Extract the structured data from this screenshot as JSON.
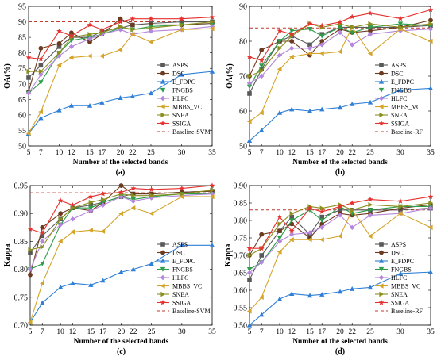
{
  "chart_data": [
    {
      "type": "line",
      "id": "a",
      "caption": "(a)",
      "xlabel": "Number of the selected bands",
      "ylabel": "OA(%)",
      "x": [
        5,
        7,
        10,
        12,
        15,
        17,
        20,
        22,
        25,
        30,
        35
      ],
      "xticks": [
        5,
        7,
        10,
        12,
        15,
        17,
        20,
        22,
        25,
        30,
        35
      ],
      "ylim": [
        50,
        95
      ],
      "yticks": [
        50,
        55,
        60,
        65,
        70,
        75,
        80,
        85,
        90,
        95
      ],
      "baseline": {
        "name": "Baseline-SVM",
        "value": 90
      },
      "legend_position": "center-right",
      "series": [
        {
          "name": "ASPS",
          "values": [
            72,
            76,
            82,
            85,
            85,
            87,
            88,
            89,
            89.5,
            90,
            90
          ]
        },
        {
          "name": "DSC",
          "values": [
            67.5,
            81.5,
            83,
            86.5,
            83.5,
            86,
            91,
            89,
            89,
            89,
            89.5
          ]
        },
        {
          "name": "E_FDPC",
          "values": [
            54,
            59,
            61.5,
            63,
            63,
            64,
            65.5,
            66,
            67,
            73,
            74
          ]
        },
        {
          "name": "FNGBS",
          "values": [
            67,
            70.5,
            80,
            84,
            85,
            86,
            88,
            87.5,
            88.5,
            89,
            89
          ]
        },
        {
          "name": "HLFC",
          "values": [
            67,
            73,
            79,
            82,
            84.5,
            86,
            87.5,
            86,
            87,
            87.5,
            88.5
          ]
        },
        {
          "name": "MBBS_VC",
          "values": [
            54,
            61,
            76,
            78.5,
            79,
            79,
            81,
            86,
            83.5,
            87.5,
            87.8
          ]
        },
        {
          "name": "SNEA",
          "values": [
            74,
            74,
            80,
            85,
            86,
            86.5,
            88.5,
            87.5,
            88,
            89,
            90
          ]
        },
        {
          "name": "SSIGA",
          "values": [
            78.5,
            78,
            87,
            85.5,
            89,
            87.5,
            90,
            91,
            91,
            91,
            91.5
          ]
        }
      ]
    },
    {
      "type": "line",
      "id": "b",
      "caption": "(b)",
      "xlabel": "Number of the selected bands",
      "ylabel": "OA(%)",
      "x": [
        5,
        7,
        10,
        12,
        15,
        17,
        20,
        22,
        25,
        30,
        35
      ],
      "xticks": [
        5,
        7,
        10,
        12,
        15,
        17,
        20,
        22,
        25,
        30,
        35
      ],
      "ylim": [
        50,
        90
      ],
      "yticks": [
        50,
        60,
        70,
        80,
        90
      ],
      "baseline": {
        "name": "Baseline-RF",
        "value": 83.8
      },
      "legend_position": "center-right",
      "series": [
        {
          "name": "ASPS",
          "values": [
            65,
            72,
            80,
            81.5,
            79,
            82,
            84,
            84,
            84,
            84,
            84.5
          ]
        },
        {
          "name": "DSC",
          "values": [
            70,
            77.5,
            80,
            80,
            76,
            80,
            83.5,
            82.5,
            83,
            84,
            86
          ]
        },
        {
          "name": "E_FDPC",
          "values": [
            51.5,
            54.5,
            59.5,
            60.5,
            60,
            60.5,
            61,
            62,
            62.5,
            66,
            66.5
          ]
        },
        {
          "name": "FNGBS",
          "values": [
            67,
            73,
            80,
            83,
            83.5,
            81.5,
            84,
            82.5,
            84,
            85,
            84.5
          ]
        },
        {
          "name": "HLFC",
          "values": [
            68,
            70,
            76,
            78,
            78,
            79,
            82.5,
            79,
            82,
            83,
            83.5
          ]
        },
        {
          "name": "MBBS_VC",
          "values": [
            57,
            59.5,
            72,
            75.5,
            76.5,
            76.5,
            77,
            84,
            76.5,
            83.5,
            80
          ]
        },
        {
          "name": "SNEA",
          "values": [
            70,
            71.5,
            78,
            81.5,
            85,
            84,
            85,
            84,
            85,
            84,
            85
          ]
        },
        {
          "name": "SSIGA",
          "values": [
            75.5,
            74.5,
            83,
            82,
            85,
            84.5,
            85.5,
            87,
            88,
            86.5,
            89
          ]
        }
      ]
    },
    {
      "type": "line",
      "id": "c",
      "caption": "(c)",
      "xlabel": "Number of the selected bands",
      "ylabel": "Kappa",
      "x": [
        5,
        7,
        10,
        12,
        15,
        17,
        20,
        22,
        25,
        30,
        35
      ],
      "xticks": [
        5,
        7,
        10,
        12,
        15,
        17,
        20,
        22,
        25,
        30,
        35
      ],
      "ylim": [
        0.7,
        0.95
      ],
      "yticks": [
        0.7,
        0.75,
        0.8,
        0.85,
        0.9,
        0.95
      ],
      "baseline": {
        "name": "Baseline-SVM",
        "value": 0.937
      },
      "legend_position": "center-right",
      "series": [
        {
          "name": "ASPS",
          "values": [
            0.83,
            0.86,
            0.89,
            0.91,
            0.915,
            0.92,
            0.93,
            0.935,
            0.935,
            0.938,
            0.94
          ]
        },
        {
          "name": "DSC",
          "values": [
            0.79,
            0.875,
            0.9,
            0.91,
            0.905,
            0.92,
            0.95,
            0.935,
            0.935,
            0.938,
            0.94
          ]
        },
        {
          "name": "E_FDPC",
          "values": [
            0.705,
            0.74,
            0.768,
            0.775,
            0.772,
            0.78,
            0.795,
            0.8,
            0.81,
            0.843,
            0.843
          ]
        },
        {
          "name": "FNGBS",
          "values": [
            0.8,
            0.81,
            0.88,
            0.91,
            0.91,
            0.92,
            0.93,
            0.925,
            0.93,
            0.935,
            0.935
          ]
        },
        {
          "name": "HLFC",
          "values": [
            0.8,
            0.85,
            0.88,
            0.89,
            0.905,
            0.915,
            0.93,
            0.922,
            0.928,
            0.932,
            0.935
          ]
        },
        {
          "name": "MBBS_VC",
          "values": [
            0.705,
            0.775,
            0.85,
            0.867,
            0.87,
            0.868,
            0.9,
            0.91,
            0.9,
            0.93,
            0.93
          ]
        },
        {
          "name": "SNEA",
          "values": [
            0.835,
            0.84,
            0.89,
            0.91,
            0.92,
            0.925,
            0.935,
            0.932,
            0.932,
            0.935,
            0.942
          ]
        },
        {
          "name": "SSIGA",
          "values": [
            0.872,
            0.865,
            0.923,
            0.915,
            0.93,
            0.935,
            0.938,
            0.945,
            0.943,
            0.945,
            0.95
          ]
        }
      ]
    },
    {
      "type": "line",
      "id": "d",
      "caption": "(d)",
      "xlabel": "Number of the selected bands",
      "ylabel": "Kappa",
      "x": [
        5,
        7,
        10,
        12,
        15,
        17,
        20,
        22,
        25,
        30,
        35
      ],
      "xticks": [
        5,
        7,
        10,
        12,
        15,
        17,
        20,
        22,
        25,
        30,
        35
      ],
      "ylim": [
        0.5,
        0.9
      ],
      "yticks": [
        0.5,
        0.55,
        0.6,
        0.65,
        0.7,
        0.75,
        0.8,
        0.85,
        0.9
      ],
      "baseline": {
        "name": "Baseline-RF",
        "value": 0.83
      },
      "legend_position": "center-right",
      "series": [
        {
          "name": "ASPS",
          "values": [
            0.63,
            0.7,
            0.77,
            0.81,
            0.76,
            0.81,
            0.83,
            0.83,
            0.83,
            0.83,
            0.835
          ]
        },
        {
          "name": "DSC",
          "values": [
            0.7,
            0.76,
            0.77,
            0.79,
            0.75,
            0.79,
            0.82,
            0.815,
            0.82,
            0.835,
            0.845
          ]
        },
        {
          "name": "E_FDPC",
          "values": [
            0.5,
            0.53,
            0.575,
            0.59,
            0.585,
            0.588,
            0.596,
            0.604,
            0.608,
            0.648,
            0.652
          ]
        },
        {
          "name": "FNGBS",
          "values": [
            0.66,
            0.68,
            0.75,
            0.8,
            0.83,
            0.8,
            0.84,
            0.82,
            0.83,
            0.84,
            0.84
          ]
        },
        {
          "name": "HLFC",
          "values": [
            0.65,
            0.68,
            0.74,
            0.76,
            0.765,
            0.78,
            0.815,
            0.78,
            0.815,
            0.82,
            0.835
          ]
        },
        {
          "name": "MBBS_VC",
          "values": [
            0.54,
            0.58,
            0.71,
            0.745,
            0.745,
            0.745,
            0.755,
            0.83,
            0.755,
            0.82,
            0.78
          ]
        },
        {
          "name": "SNEA",
          "values": [
            0.7,
            0.72,
            0.79,
            0.82,
            0.84,
            0.835,
            0.845,
            0.83,
            0.845,
            0.84,
            0.85
          ]
        },
        {
          "name": "SSIGA",
          "values": [
            0.72,
            0.72,
            0.81,
            0.77,
            0.835,
            0.825,
            0.84,
            0.85,
            0.86,
            0.855,
            0.868
          ]
        }
      ]
    }
  ],
  "series_styles": {
    "ASPS": {
      "color": "#595959",
      "marker": "square"
    },
    "DSC": {
      "color": "#6b3a1f",
      "marker": "circle"
    },
    "E_FDPC": {
      "color": "#2f7fd6",
      "marker": "triangle"
    },
    "FNGBS": {
      "color": "#2e9d4a",
      "marker": "triangle-down"
    },
    "HLFC": {
      "color": "#b486dc",
      "marker": "diamond"
    },
    "MBBS_VC": {
      "color": "#d4a52a",
      "marker": "triangle-left"
    },
    "SNEA": {
      "color": "#8a8f1e",
      "marker": "triangle-right"
    },
    "SSIGA": {
      "color": "#e5322f",
      "marker": "star"
    }
  },
  "baseline_color": "#c0392b"
}
